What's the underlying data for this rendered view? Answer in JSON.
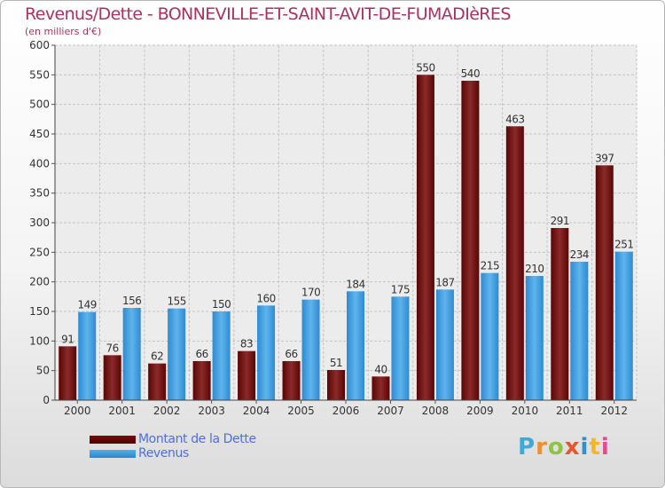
{
  "chart_data": {
    "type": "bar",
    "title": "Revenus/Dette - BONNEVILLE-ET-SAINT-AVIT-DE-FUMADIèRES",
    "subtitle": "(en milliers d'€)",
    "xlabel": "",
    "ylabel": "",
    "categories": [
      "2000",
      "2001",
      "2002",
      "2003",
      "2004",
      "2005",
      "2006",
      "2007",
      "2008",
      "2009",
      "2010",
      "2011",
      "2012"
    ],
    "series": [
      {
        "name": "Montant de la Dette",
        "color": "#6e0b0b",
        "values": [
          91,
          76,
          62,
          66,
          83,
          66,
          51,
          40,
          550,
          540,
          463,
          291,
          397
        ]
      },
      {
        "name": "Revenus",
        "color": "#3d97dd",
        "values": [
          149,
          156,
          155,
          150,
          160,
          170,
          184,
          175,
          187,
          215,
          210,
          234,
          251
        ]
      }
    ],
    "ylim": [
      0,
      600
    ],
    "yticks": [
      0,
      50,
      100,
      150,
      200,
      250,
      300,
      350,
      400,
      450,
      500,
      550,
      600
    ],
    "grid": true,
    "legend_position": "bottom-left"
  },
  "logo_text": [
    "P",
    "r",
    "o",
    "x",
    "i",
    "t",
    "i"
  ]
}
